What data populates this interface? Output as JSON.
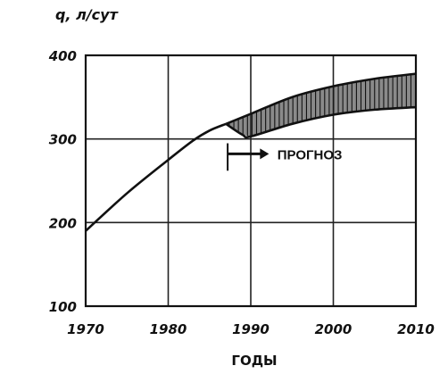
{
  "chart_data": {
    "type": "line",
    "ylabel": "q, л/сут",
    "xlabel": "ГОДЫ",
    "xlim": [
      1970,
      2010
    ],
    "ylim": [
      100,
      400
    ],
    "x_ticks": [
      1970,
      1980,
      1990,
      2000,
      2010
    ],
    "y_ticks": [
      100,
      200,
      300,
      400
    ],
    "grid": true,
    "series": [
      {
        "values": [
          [
            1970,
            190
          ],
          [
            1975,
            235
          ],
          [
            1980,
            275
          ],
          [
            1983,
            298
          ],
          [
            1985,
            310
          ],
          [
            1987,
            318
          ]
        ]
      },
      {
        "values": [
          [
            1987,
            318
          ],
          [
            1990,
            330
          ],
          [
            1995,
            350
          ],
          [
            2000,
            363
          ],
          [
            2005,
            372
          ],
          [
            2010,
            378
          ]
        ]
      },
      {
        "values": [
          [
            1987,
            318
          ],
          [
            1989,
            305
          ],
          [
            1990,
            303
          ],
          [
            1995,
            318
          ],
          [
            2000,
            329
          ],
          [
            2005,
            335
          ],
          [
            2010,
            338
          ]
        ]
      }
    ],
    "annotations": [
      {
        "text": "ПРОГНОЗ",
        "x": 1993,
        "y": 280
      }
    ]
  }
}
